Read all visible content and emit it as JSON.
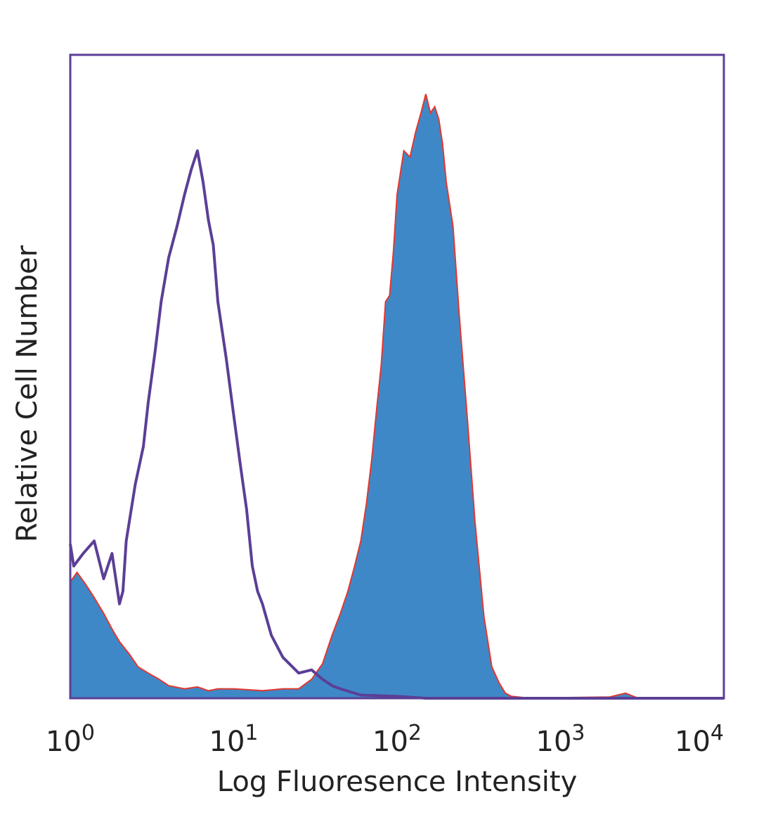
{
  "chart_data": {
    "type": "area",
    "title": "",
    "xlabel": "Log Fluoresence Intensity",
    "ylabel": "Relative Cell Number",
    "x_scale": "log",
    "xlim": [
      1,
      10000
    ],
    "ylim": [
      0,
      100
    ],
    "grid": false,
    "legend": "none",
    "xticks": [
      {
        "value": 1,
        "base": "10",
        "exp": "0"
      },
      {
        "value": 10,
        "base": "10",
        "exp": "1"
      },
      {
        "value": 100,
        "base": "10",
        "exp": "2"
      },
      {
        "value": 1000,
        "base": "10",
        "exp": "3"
      },
      {
        "value": 10000,
        "base": "10",
        "exp": "4"
      }
    ],
    "colors": {
      "frame": "#5b3f96",
      "filled_series": "#3f88c8",
      "filled_outline": "#e2382f",
      "control_series": "#5b3f96"
    },
    "series": [
      {
        "style": "filled",
        "x": [
          1.0,
          1.1,
          1.25,
          1.4,
          1.6,
          1.8,
          2.0,
          2.3,
          2.6,
          3.0,
          3.5,
          4.0,
          5.0,
          6.0,
          7.0,
          8.0,
          10.0,
          15.0,
          20.0,
          25.0,
          30.0,
          35.0,
          40.0,
          45.0,
          50.0,
          55.0,
          60.0,
          65.0,
          70.0,
          75.0,
          80.0,
          85.0,
          90.0,
          95.0,
          100.0,
          110.0,
          120.0,
          130.0,
          140.0,
          150.0,
          160.0,
          170.0,
          180.0,
          190.0,
          200.0,
          220.0,
          240.0,
          270.0,
          300.0,
          340.0,
          380.0,
          420.0,
          460.0,
          500.0,
          600.0,
          1000.0,
          2000.0,
          2500.0,
          3000.0,
          10000.0
        ],
        "y": [
          18.5,
          20.0,
          18.0,
          16.0,
          13.5,
          11.0,
          9.0,
          7.0,
          5.0,
          4.0,
          3.0,
          2.0,
          1.5,
          1.8,
          1.2,
          1.5,
          1.5,
          1.2,
          1.5,
          1.5,
          3.0,
          5.5,
          10.0,
          13.5,
          17.0,
          21.0,
          25.0,
          31.0,
          38.0,
          46.0,
          53.0,
          63.0,
          64.0,
          71.0,
          80.0,
          87.0,
          86.0,
          90.0,
          93.0,
          96.0,
          93.0,
          94.0,
          92.0,
          88.0,
          82.0,
          75.0,
          61.0,
          44.0,
          28.0,
          13.0,
          5.0,
          2.5,
          0.8,
          0.3,
          0.1,
          0.1,
          0.2,
          0.8,
          0.0,
          0.0
        ]
      },
      {
        "style": "line",
        "x": [
          1.0,
          1.05,
          1.2,
          1.4,
          1.6,
          1.8,
          2.0,
          2.1,
          2.2,
          2.5,
          2.8,
          3.0,
          3.3,
          3.6,
          4.0,
          4.5,
          5.0,
          5.5,
          6.0,
          6.5,
          7.0,
          7.5,
          8.0,
          9.0,
          10.0,
          11.0,
          12.0,
          13.0,
          14.0,
          15.0,
          17.0,
          20.0,
          25.0,
          30.0,
          35.0,
          40.0,
          45.0,
          60.0,
          100.0,
          150.0,
          10000.0
        ],
        "y": [
          24.5,
          21.0,
          23.0,
          25.0,
          19.0,
          23.0,
          15.0,
          17.0,
          25.0,
          34.0,
          40.0,
          47.0,
          55.0,
          63.0,
          70.0,
          75.0,
          80.0,
          84.0,
          87.0,
          82.0,
          76.0,
          72.0,
          63.0,
          54.0,
          45.0,
          37.0,
          30.0,
          21.0,
          17.0,
          15.0,
          10.0,
          6.5,
          4.0,
          4.5,
          3.0,
          2.0,
          1.5,
          0.5,
          0.3,
          0.0,
          0.0
        ]
      }
    ]
  }
}
